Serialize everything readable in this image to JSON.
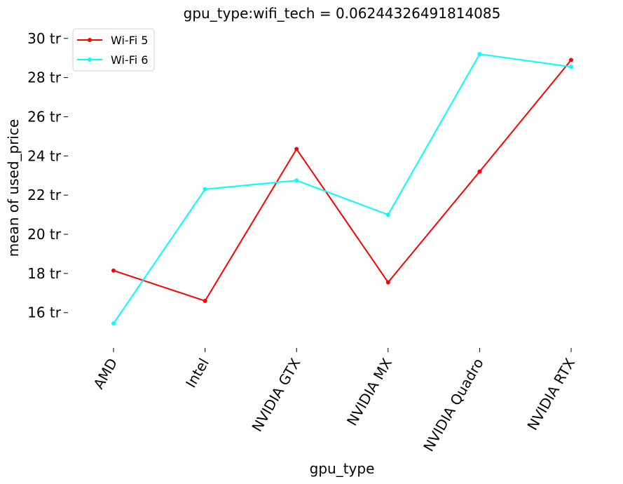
{
  "chart_data": {
    "type": "line",
    "title": "gpu_type:wifi_tech = 0.06244326491814085",
    "xlabel": "gpu_type",
    "ylabel": "mean of used_price",
    "categories": [
      "AMD",
      "Intel",
      "NVIDIA GTX",
      "NVIDIA MX",
      "NVIDIA Quadro",
      "NVIDIA RTX"
    ],
    "series": [
      {
        "name": "Wi-Fi 5",
        "color": "#ff0000",
        "values": [
          18.15,
          16.6,
          24.35,
          17.55,
          23.2,
          28.9
        ]
      },
      {
        "name": "Wi-Fi 6",
        "color": "#00ffff",
        "values": [
          15.45,
          22.3,
          22.75,
          21.0,
          29.2,
          28.55
        ]
      }
    ],
    "yticks": [
      16,
      18,
      20,
      22,
      24,
      26,
      28,
      30
    ],
    "ytick_labels": [
      "16 tr",
      "18 tr",
      "20 tr",
      "22 tr",
      "24 tr",
      "26 tr",
      "28 tr",
      "30 tr"
    ],
    "ylim": [
      14.2,
      30.6
    ],
    "grid": false,
    "legend_position": "top-left"
  }
}
